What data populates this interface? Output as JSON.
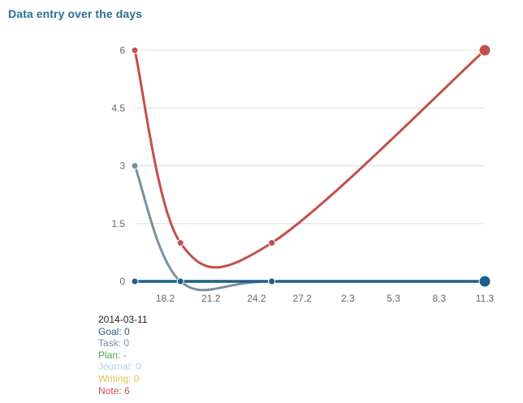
{
  "header": {
    "title": "Data entry over the days"
  },
  "chart_data": {
    "type": "line",
    "title": "Data entry over the days",
    "x_tick_labels": [
      "18.2",
      "21.2",
      "24.2",
      "27.2",
      "2.3",
      "5.3",
      "8.3",
      "11.3"
    ],
    "y_tick_labels": [
      "0",
      "1.5",
      "3",
      "4.5",
      "6"
    ],
    "ylim": [
      0,
      6
    ],
    "grid": true,
    "x_points": [
      "2014-02-16",
      "2014-02-19",
      "2014-02-25",
      "2014-03-11"
    ],
    "series": [
      {
        "name": "Task",
        "color": "#7a8fa0",
        "values": [
          3,
          0,
          0,
          0
        ]
      },
      {
        "name": "Note",
        "color": "#c0504d",
        "values": [
          6,
          1,
          1,
          6
        ]
      },
      {
        "name": "Goal",
        "color": "#1d5f8a",
        "values": [
          0,
          0,
          0,
          0
        ]
      }
    ]
  },
  "legend": {
    "date": "2014-03-11",
    "items": [
      {
        "label": "Goal:",
        "value": "0",
        "color": "#1d5f8a"
      },
      {
        "label": "Task:",
        "value": "0",
        "color": "#7a8fa0"
      },
      {
        "label": "Plan:",
        "value": "-",
        "color": "#4aa64a"
      },
      {
        "label": "Journal:",
        "value": "0",
        "color": "#a8d8ea"
      },
      {
        "label": "Writing:",
        "value": "0",
        "color": "#e3c14d"
      },
      {
        "label": "Note:",
        "value": "6",
        "color": "#c0504d"
      }
    ]
  }
}
